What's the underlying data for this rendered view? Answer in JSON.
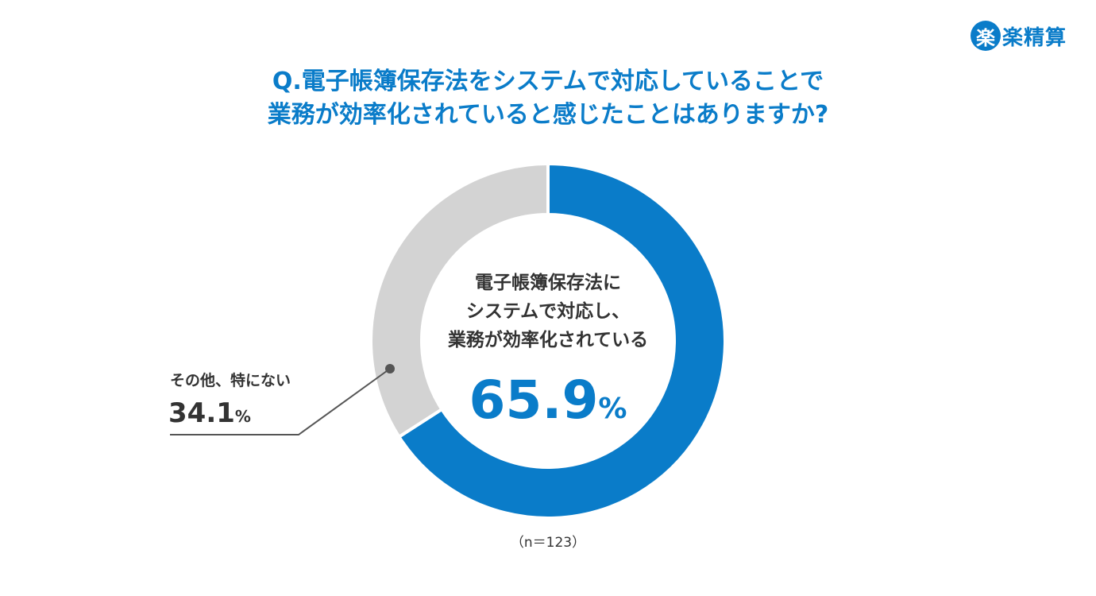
{
  "brand": {
    "logo_mark": "楽",
    "logo_text": "楽精算",
    "color": "#0a7cc9"
  },
  "title": {
    "line1": "Q.電子帳簿保存法をシステムで対応していることで",
    "line2": "業務が効率化されていると感じたことはありますか?"
  },
  "center": {
    "line1": "電子帳簿保存法に",
    "line2": "システムで対応し、",
    "line3": "業務が効率化されている",
    "value": "65.9",
    "unit": "%"
  },
  "other": {
    "label": "その他、特にない",
    "value": "34.1",
    "unit": "%"
  },
  "sample": "（n＝123）",
  "chart_data": {
    "type": "pie",
    "subtype": "donut",
    "title": "Q.電子帳簿保存法をシステムで対応していることで業務が効率化されていると感じたことはありますか?",
    "categories": [
      "電子帳簿保存法にシステムで対応し、業務が効率化されている",
      "その他、特にない"
    ],
    "values": [
      65.9,
      34.1
    ],
    "colors": [
      "#0a7cc9",
      "#d3d3d3"
    ],
    "n": 123,
    "start_angle": "12 o'clock, clockwise"
  }
}
